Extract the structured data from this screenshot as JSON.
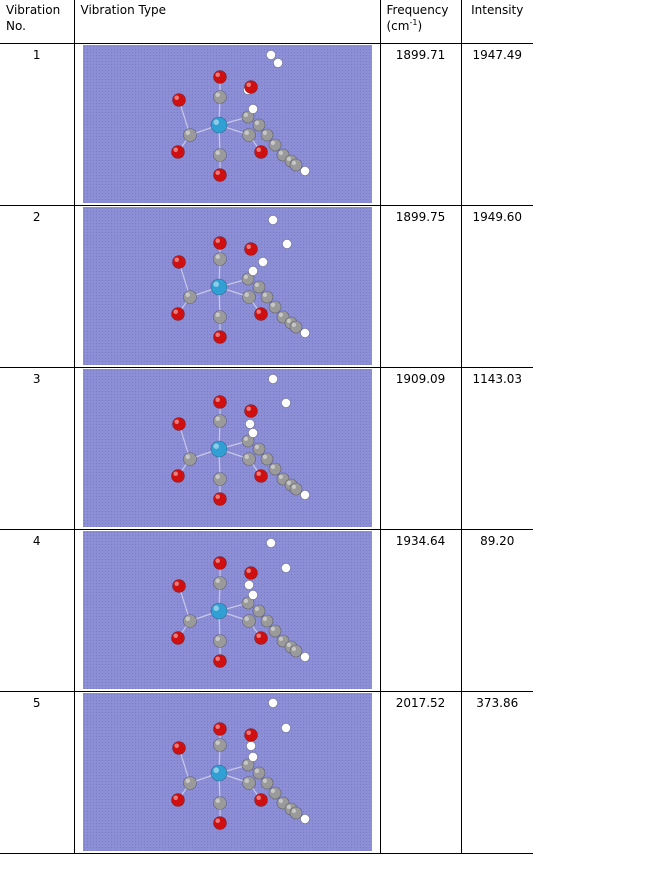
{
  "table": {
    "headers": {
      "number": [
        "Vibration",
        "No."
      ],
      "type": "Vibration Type",
      "frequency": "Frequency",
      "frequency_unit_open": "(cm",
      "frequency_unit_exp": "-1",
      "frequency_unit_close": ")",
      "intensity": "Intensity"
    },
    "rows": [
      {
        "no": "1",
        "frequency": "1899.71",
        "intensity": "1947.49"
      },
      {
        "no": "2",
        "frequency": "1899.75",
        "intensity": "1949.60"
      },
      {
        "no": "3",
        "frequency": "1909.09",
        "intensity": "1143.03"
      },
      {
        "no": "4",
        "frequency": "1934.64",
        "intensity": "89.20"
      },
      {
        "no": "5",
        "frequency": "2017.52",
        "intensity": "373.86"
      }
    ]
  },
  "colors": {
    "molecule_background": "#8c8ed6",
    "metal_atom": "#2f9fd4",
    "carbon_atom": "#9a9a9a",
    "oxygen_atom": "#d01010",
    "hydrogen_atom": "#ffffff"
  }
}
